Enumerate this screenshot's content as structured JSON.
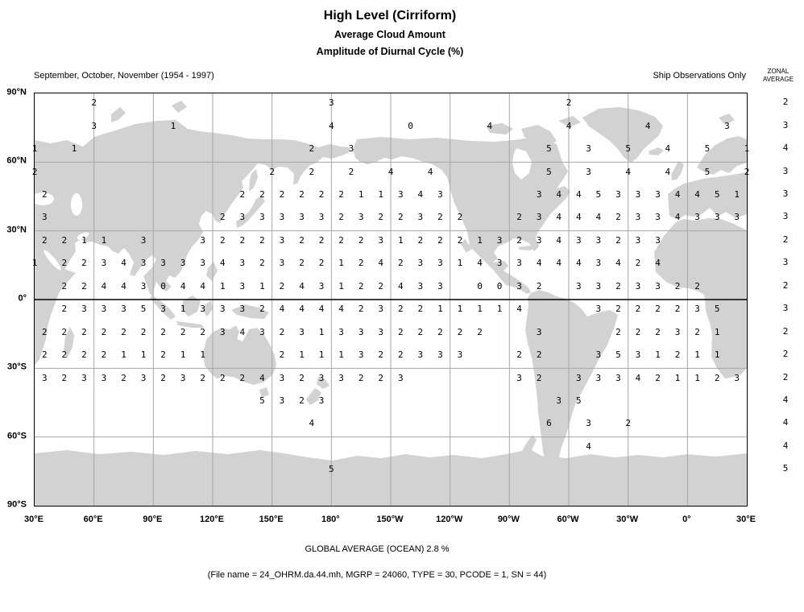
{
  "header": {
    "title": "High Level (Cirriform)",
    "subtitle1": "Average Cloud Amount",
    "subtitle2": "Amplitude of Diurnal Cycle (%)",
    "season_label": "September, October, November (1954 - 1997)",
    "source_label": "Ship Observations Only",
    "zonal_header_line1": "ZONAL",
    "zonal_header_line2": "AVERAGE"
  },
  "footer": {
    "global_average": "GLOBAL AVERAGE (OCEAN)   2.8 %",
    "file_info": "(File name = 24_OHRM.da.44.mh, MGRP = 24060, TYPE = 30, PCODE = 1, SN = 44)"
  },
  "map": {
    "lat_labels": [
      "90°N",
      "60°N",
      "30°N",
      "0°",
      "30°S",
      "60°S",
      "90°S"
    ],
    "lon_labels": [
      "30°E",
      "60°E",
      "90°E",
      "120°E",
      "150°E",
      "180°",
      "150°W",
      "120°W",
      "90°W",
      "60°W",
      "30°W",
      "0°",
      "30°E"
    ],
    "land_color": "#d2d2d2",
    "grid_color": "#a6a6a6",
    "equator_color": "#000000"
  },
  "chart_data": {
    "type": "heatmap",
    "description": "Gridded single-digit values (%) of the amplitude of the diurnal cycle of high (cirriform) cloud amount over ocean boxes; column index = 5-degree steps of longitude starting at 30E (col 0 = 30E, col 72 = 30E wrapped); one row per 10-degree latitude band from 85N to 85S.",
    "lat_bands": [
      "85N",
      "75N",
      "65N",
      "55N",
      "45N",
      "35N",
      "25N",
      "15N",
      "5N",
      "5S",
      "15S",
      "25S",
      "35S",
      "45S",
      "55S",
      "65S",
      "75S",
      "85S"
    ],
    "zonal_averages": [
      2,
      3,
      4,
      3,
      3,
      3,
      2,
      3,
      2,
      3,
      2,
      2,
      2,
      4,
      4,
      4,
      5,
      null
    ],
    "global_average_pct": 2.8,
    "rows": [
      {
        "band": "85N",
        "points": [
          [
            6,
            2
          ],
          [
            30,
            3
          ],
          [
            54,
            2
          ]
        ]
      },
      {
        "band": "75N",
        "points": [
          [
            6,
            3
          ],
          [
            14,
            1
          ],
          [
            30,
            4
          ],
          [
            38,
            0
          ],
          [
            46,
            4
          ],
          [
            54,
            4
          ],
          [
            62,
            4
          ],
          [
            70,
            3
          ]
        ]
      },
      {
        "band": "65N",
        "points": [
          [
            0,
            1
          ],
          [
            4,
            1
          ],
          [
            28,
            2
          ],
          [
            32,
            3
          ],
          [
            52,
            5
          ],
          [
            56,
            3
          ],
          [
            60,
            5
          ],
          [
            64,
            4
          ],
          [
            68,
            5
          ],
          [
            72,
            1
          ]
        ]
      },
      {
        "band": "55N",
        "points": [
          [
            0,
            2
          ],
          [
            24,
            2
          ],
          [
            28,
            2
          ],
          [
            32,
            2
          ],
          [
            36,
            4
          ],
          [
            40,
            4
          ],
          [
            52,
            5
          ],
          [
            56,
            3
          ],
          [
            60,
            4
          ],
          [
            64,
            4
          ],
          [
            68,
            5
          ],
          [
            72,
            2
          ]
        ]
      },
      {
        "band": "45N",
        "points": [
          [
            1,
            2
          ],
          [
            21,
            2
          ],
          [
            23,
            2
          ],
          [
            25,
            2
          ],
          [
            27,
            2
          ],
          [
            29,
            2
          ],
          [
            31,
            2
          ],
          [
            33,
            1
          ],
          [
            35,
            1
          ],
          [
            37,
            3
          ],
          [
            39,
            4
          ],
          [
            41,
            3
          ],
          [
            51,
            3
          ],
          [
            53,
            4
          ],
          [
            55,
            4
          ],
          [
            57,
            5
          ],
          [
            59,
            3
          ],
          [
            61,
            3
          ],
          [
            63,
            3
          ],
          [
            65,
            4
          ],
          [
            67,
            4
          ],
          [
            69,
            5
          ],
          [
            71,
            1
          ]
        ]
      },
      {
        "band": "35N",
        "points": [
          [
            1,
            3
          ],
          [
            19,
            2
          ],
          [
            21,
            3
          ],
          [
            23,
            3
          ],
          [
            25,
            3
          ],
          [
            27,
            3
          ],
          [
            29,
            3
          ],
          [
            31,
            2
          ],
          [
            33,
            3
          ],
          [
            35,
            2
          ],
          [
            37,
            2
          ],
          [
            39,
            3
          ],
          [
            41,
            2
          ],
          [
            43,
            2
          ],
          [
            49,
            2
          ],
          [
            51,
            3
          ],
          [
            53,
            4
          ],
          [
            55,
            4
          ],
          [
            57,
            4
          ],
          [
            59,
            2
          ],
          [
            61,
            3
          ],
          [
            63,
            3
          ],
          [
            65,
            4
          ],
          [
            67,
            3
          ],
          [
            69,
            3
          ],
          [
            71,
            3
          ]
        ]
      },
      {
        "band": "25N",
        "points": [
          [
            1,
            2
          ],
          [
            3,
            2
          ],
          [
            5,
            1
          ],
          [
            7,
            1
          ],
          [
            11,
            3
          ],
          [
            17,
            3
          ],
          [
            19,
            2
          ],
          [
            21,
            2
          ],
          [
            23,
            2
          ],
          [
            25,
            3
          ],
          [
            27,
            2
          ],
          [
            29,
            2
          ],
          [
            31,
            2
          ],
          [
            33,
            2
          ],
          [
            35,
            3
          ],
          [
            37,
            1
          ],
          [
            39,
            2
          ],
          [
            41,
            2
          ],
          [
            43,
            2
          ],
          [
            45,
            1
          ],
          [
            47,
            3
          ],
          [
            49,
            2
          ],
          [
            51,
            3
          ],
          [
            53,
            4
          ],
          [
            55,
            3
          ],
          [
            57,
            3
          ],
          [
            59,
            2
          ],
          [
            61,
            3
          ],
          [
            63,
            3
          ]
        ]
      },
      {
        "band": "15N",
        "points": [
          [
            0,
            1
          ],
          [
            3,
            2
          ],
          [
            5,
            2
          ],
          [
            7,
            3
          ],
          [
            9,
            4
          ],
          [
            11,
            3
          ],
          [
            13,
            3
          ],
          [
            15,
            3
          ],
          [
            17,
            3
          ],
          [
            19,
            4
          ],
          [
            21,
            3
          ],
          [
            23,
            2
          ],
          [
            25,
            3
          ],
          [
            27,
            2
          ],
          [
            29,
            2
          ],
          [
            31,
            1
          ],
          [
            33,
            2
          ],
          [
            35,
            4
          ],
          [
            37,
            2
          ],
          [
            39,
            3
          ],
          [
            41,
            3
          ],
          [
            43,
            1
          ],
          [
            45,
            4
          ],
          [
            47,
            3
          ],
          [
            49,
            3
          ],
          [
            51,
            4
          ],
          [
            53,
            4
          ],
          [
            55,
            4
          ],
          [
            57,
            3
          ],
          [
            59,
            4
          ],
          [
            61,
            2
          ],
          [
            63,
            4
          ]
        ]
      },
      {
        "band": "5N",
        "points": [
          [
            3,
            2
          ],
          [
            5,
            2
          ],
          [
            7,
            4
          ],
          [
            9,
            4
          ],
          [
            11,
            3
          ],
          [
            13,
            0
          ],
          [
            15,
            4
          ],
          [
            17,
            4
          ],
          [
            19,
            1
          ],
          [
            21,
            3
          ],
          [
            23,
            1
          ],
          [
            25,
            2
          ],
          [
            27,
            4
          ],
          [
            29,
            3
          ],
          [
            31,
            1
          ],
          [
            33,
            2
          ],
          [
            35,
            2
          ],
          [
            37,
            4
          ],
          [
            39,
            3
          ],
          [
            41,
            3
          ],
          [
            45,
            0
          ],
          [
            47,
            0
          ],
          [
            49,
            3
          ],
          [
            51,
            2
          ],
          [
            55,
            3
          ],
          [
            57,
            3
          ],
          [
            59,
            2
          ],
          [
            61,
            3
          ],
          [
            63,
            3
          ],
          [
            65,
            2
          ],
          [
            67,
            2
          ]
        ]
      },
      {
        "band": "5S",
        "points": [
          [
            3,
            2
          ],
          [
            5,
            3
          ],
          [
            7,
            3
          ],
          [
            9,
            3
          ],
          [
            11,
            5
          ],
          [
            13,
            3
          ],
          [
            15,
            1
          ],
          [
            17,
            3
          ],
          [
            19,
            3
          ],
          [
            21,
            3
          ],
          [
            23,
            2
          ],
          [
            25,
            4
          ],
          [
            27,
            4
          ],
          [
            29,
            4
          ],
          [
            31,
            4
          ],
          [
            33,
            2
          ],
          [
            35,
            3
          ],
          [
            37,
            2
          ],
          [
            39,
            2
          ],
          [
            41,
            1
          ],
          [
            43,
            1
          ],
          [
            45,
            1
          ],
          [
            47,
            1
          ],
          [
            49,
            4
          ],
          [
            57,
            3
          ],
          [
            59,
            2
          ],
          [
            61,
            2
          ],
          [
            63,
            2
          ],
          [
            65,
            2
          ],
          [
            67,
            3
          ],
          [
            69,
            5
          ]
        ]
      },
      {
        "band": "15S",
        "points": [
          [
            1,
            2
          ],
          [
            3,
            2
          ],
          [
            5,
            2
          ],
          [
            7,
            2
          ],
          [
            9,
            2
          ],
          [
            11,
            2
          ],
          [
            13,
            2
          ],
          [
            15,
            2
          ],
          [
            17,
            2
          ],
          [
            19,
            3
          ],
          [
            21,
            4
          ],
          [
            23,
            3
          ],
          [
            25,
            2
          ],
          [
            27,
            3
          ],
          [
            29,
            1
          ],
          [
            31,
            3
          ],
          [
            33,
            3
          ],
          [
            35,
            3
          ],
          [
            37,
            2
          ],
          [
            39,
            2
          ],
          [
            41,
            2
          ],
          [
            43,
            2
          ],
          [
            45,
            2
          ],
          [
            51,
            3
          ],
          [
            59,
            2
          ],
          [
            61,
            2
          ],
          [
            63,
            2
          ],
          [
            65,
            3
          ],
          [
            67,
            2
          ],
          [
            69,
            1
          ]
        ]
      },
      {
        "band": "25S",
        "points": [
          [
            1,
            2
          ],
          [
            3,
            2
          ],
          [
            5,
            2
          ],
          [
            7,
            2
          ],
          [
            9,
            1
          ],
          [
            11,
            1
          ],
          [
            13,
            2
          ],
          [
            15,
            1
          ],
          [
            17,
            1
          ],
          [
            25,
            2
          ],
          [
            27,
            1
          ],
          [
            29,
            1
          ],
          [
            31,
            1
          ],
          [
            33,
            3
          ],
          [
            35,
            2
          ],
          [
            37,
            2
          ],
          [
            39,
            3
          ],
          [
            41,
            3
          ],
          [
            43,
            3
          ],
          [
            49,
            2
          ],
          [
            51,
            2
          ],
          [
            57,
            3
          ],
          [
            59,
            5
          ],
          [
            61,
            3
          ],
          [
            63,
            1
          ],
          [
            65,
            2
          ],
          [
            67,
            1
          ],
          [
            69,
            1
          ]
        ]
      },
      {
        "band": "35S",
        "points": [
          [
            1,
            3
          ],
          [
            3,
            2
          ],
          [
            5,
            3
          ],
          [
            7,
            3
          ],
          [
            9,
            2
          ],
          [
            11,
            3
          ],
          [
            13,
            2
          ],
          [
            15,
            3
          ],
          [
            17,
            2
          ],
          [
            19,
            2
          ],
          [
            21,
            2
          ],
          [
            23,
            4
          ],
          [
            25,
            3
          ],
          [
            27,
            2
          ],
          [
            29,
            3
          ],
          [
            31,
            3
          ],
          [
            33,
            2
          ],
          [
            35,
            2
          ],
          [
            37,
            3
          ],
          [
            49,
            3
          ],
          [
            51,
            2
          ],
          [
            55,
            3
          ],
          [
            57,
            3
          ],
          [
            59,
            3
          ],
          [
            61,
            4
          ],
          [
            63,
            2
          ],
          [
            65,
            1
          ],
          [
            67,
            1
          ],
          [
            69,
            2
          ],
          [
            71,
            3
          ]
        ]
      },
      {
        "band": "45S",
        "points": [
          [
            23,
            5
          ],
          [
            25,
            3
          ],
          [
            27,
            2
          ],
          [
            29,
            3
          ],
          [
            53,
            3
          ],
          [
            55,
            5
          ]
        ]
      },
      {
        "band": "55S",
        "points": [
          [
            28,
            4
          ],
          [
            52,
            6
          ],
          [
            56,
            3
          ],
          [
            60,
            2
          ]
        ]
      },
      {
        "band": "65S",
        "points": [
          [
            56,
            4
          ]
        ]
      },
      {
        "band": "75S",
        "points": [
          [
            30,
            5
          ]
        ]
      },
      {
        "band": "85S",
        "points": []
      }
    ]
  }
}
